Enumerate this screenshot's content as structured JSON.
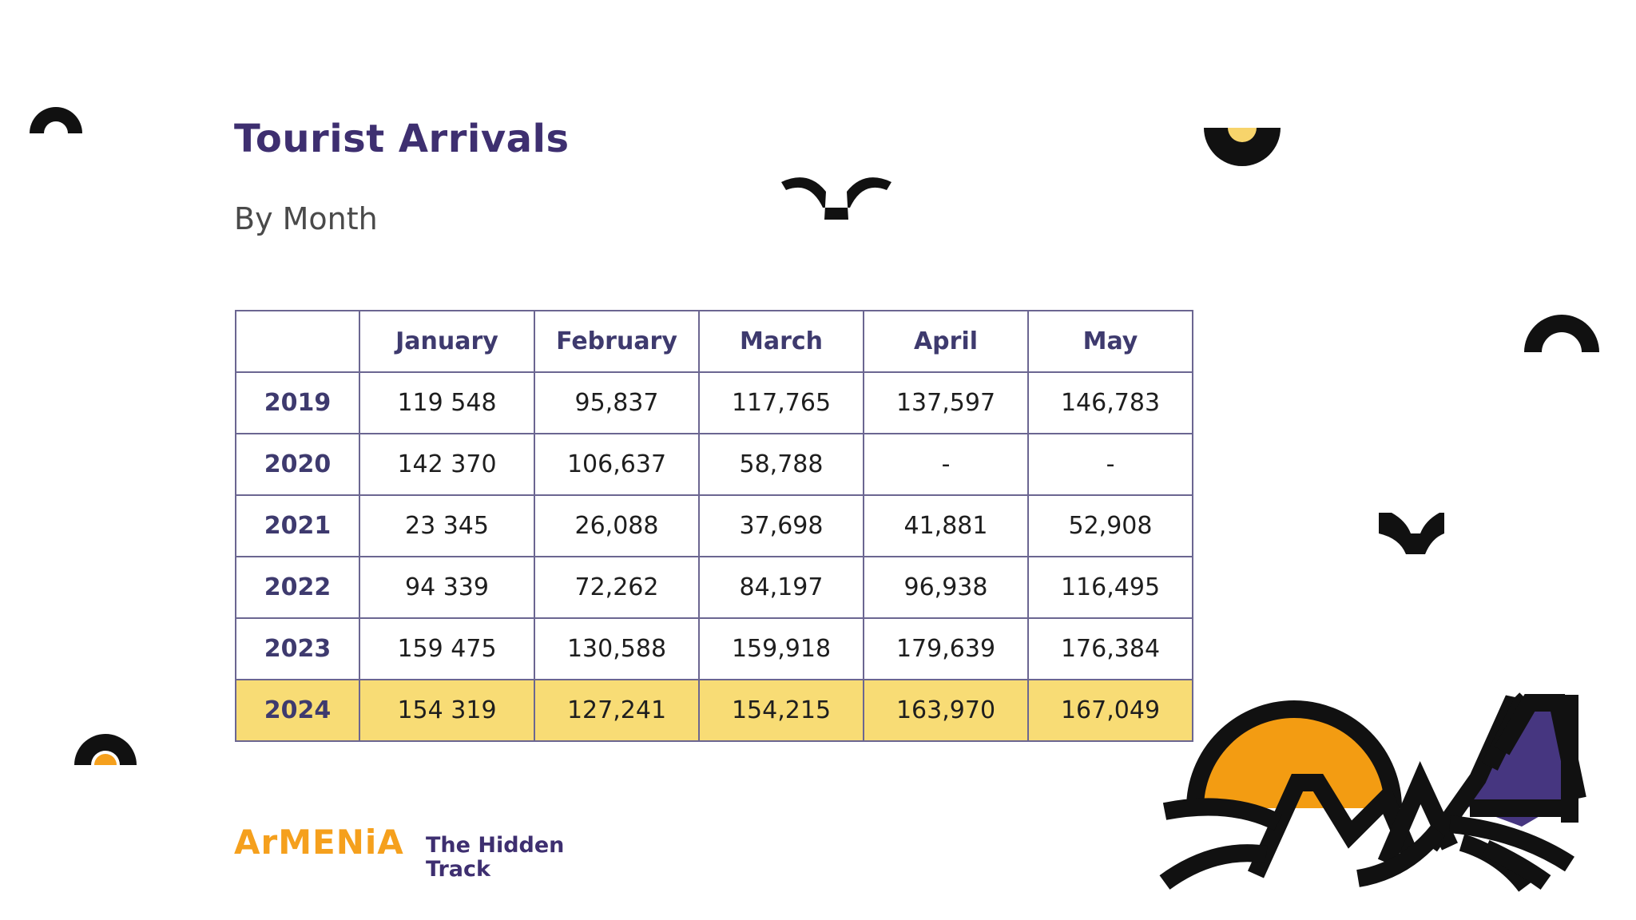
{
  "title": "Tourist Arrivals",
  "subtitle": "By Month",
  "table": {
    "columns": [
      "",
      "January",
      "February",
      "March",
      "April",
      "May"
    ],
    "rows": [
      {
        "year": "2019",
        "values": [
          "119 548",
          "95,837",
          "117,765",
          "137,597",
          "146,783"
        ]
      },
      {
        "year": "2020",
        "values": [
          "142 370",
          "106,637",
          "58,788",
          "-",
          "-"
        ]
      },
      {
        "year": "2021",
        "values": [
          "23 345",
          "26,088",
          "37,698",
          "41,881",
          "52,908"
        ]
      },
      {
        "year": "2022",
        "values": [
          "94 339",
          "72,262",
          "84,197",
          "96,938",
          "116,495"
        ]
      },
      {
        "year": "2023",
        "values": [
          "159 475",
          "130,588",
          "159,918",
          "179,639",
          "176,384"
        ]
      },
      {
        "year": "2024",
        "values": [
          "154 319",
          "127,241",
          "154,215",
          "163,970",
          "167,049"
        ],
        "highlight": true
      }
    ]
  },
  "logo": {
    "brand": "ArMENiA",
    "tagline": "The Hidden Track"
  },
  "colors": {
    "title": "#3e2f70",
    "highlight": "#f8dc75",
    "brand_orange": "#f5a01d",
    "purple": "#463680"
  },
  "decorations": [
    "semicircle-arc-icon",
    "bird-icon",
    "half-sun-icon",
    "sun-mountains-illustration"
  ]
}
